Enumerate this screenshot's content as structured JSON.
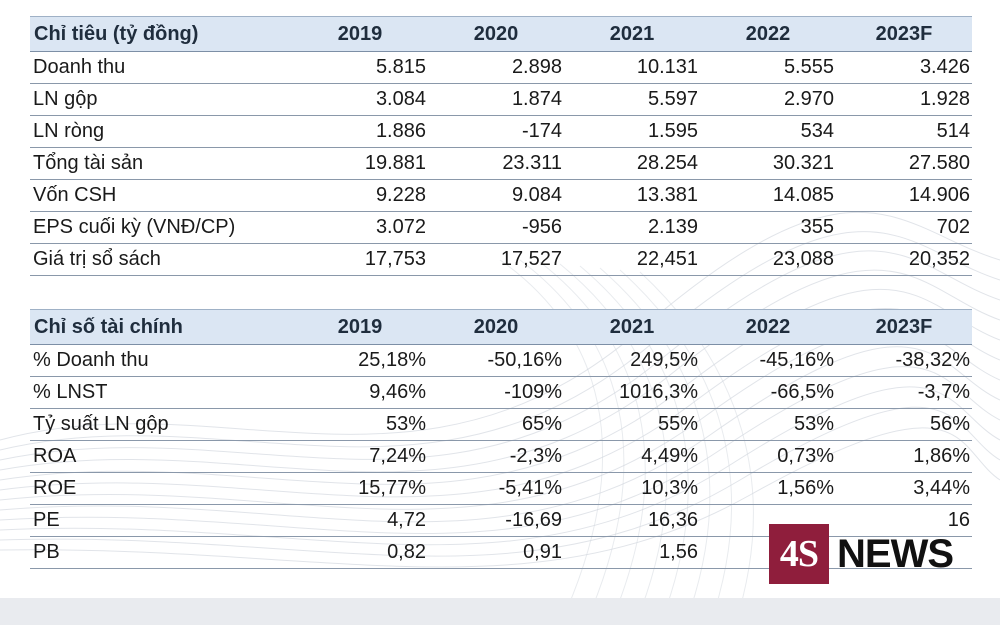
{
  "table1": {
    "headers": [
      "Chỉ tiêu (tỷ đồng)",
      "2019",
      "2020",
      "2021",
      "2022",
      "2023F"
    ],
    "rows": [
      {
        "label": "Doanh thu",
        "values": [
          "5.815",
          "2.898",
          "10.131",
          "5.555",
          "3.426"
        ]
      },
      {
        "label": "LN gộp",
        "values": [
          "3.084",
          "1.874",
          "5.597",
          "2.970",
          "1.928"
        ]
      },
      {
        "label": "LN ròng",
        "values": [
          "1.886",
          "-174",
          "1.595",
          "534",
          "514"
        ]
      },
      {
        "label": "Tổng tài sản",
        "values": [
          "19.881",
          "23.311",
          "28.254",
          "30.321",
          "27.580"
        ]
      },
      {
        "label": "Vốn CSH",
        "values": [
          "9.228",
          "9.084",
          "13.381",
          "14.085",
          "14.906"
        ]
      },
      {
        "label": "EPS cuối kỳ (VNĐ/CP)",
        "values": [
          "3.072",
          "-956",
          "2.139",
          "355",
          "702"
        ]
      },
      {
        "label": "Giá trị sổ sách",
        "values": [
          "17,753",
          "17,527",
          "22,451",
          "23,088",
          "20,352"
        ]
      }
    ]
  },
  "table2": {
    "headers": [
      "Chỉ số tài chính",
      "2019",
      "2020",
      "2021",
      "2022",
      "2023F"
    ],
    "rows": [
      {
        "label": "% Doanh thu",
        "values": [
          "25,18%",
          "-50,16%",
          "249,5%",
          "-45,16%",
          "-38,32%"
        ]
      },
      {
        "label": "% LNST",
        "values": [
          "9,46%",
          "-109%",
          "1016,3%",
          "-66,5%",
          "-3,7%"
        ]
      },
      {
        "label": "Tỷ suất LN gộp",
        "values": [
          "53%",
          "65%",
          "55%",
          "53%",
          "56%"
        ]
      },
      {
        "label": "ROA",
        "values": [
          "7,24%",
          "-2,3%",
          "4,49%",
          "0,73%",
          "1,86%"
        ]
      },
      {
        "label": "ROE",
        "values": [
          "15,77%",
          "-5,41%",
          "10,3%",
          "1,56%",
          "3,44%"
        ]
      },
      {
        "label": "PE",
        "values": [
          "4,72",
          "-16,69",
          "16,36",
          "",
          "16"
        ]
      },
      {
        "label": "PB",
        "values": [
          "0,82",
          "0,91",
          "1,56",
          "",
          ""
        ]
      }
    ]
  },
  "watermark": {
    "logo_mark": "4S",
    "logo_text": "NEWS",
    "brand_color": "#8f1e3c"
  }
}
